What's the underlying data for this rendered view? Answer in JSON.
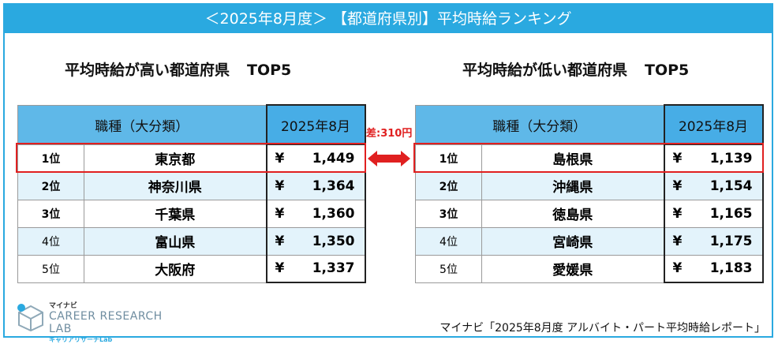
{
  "banner_title": "＜2025年8月度＞ 【都道府県別】平均時給ランキング",
  "diff_label": "差:310円",
  "logo": {
    "small": "マイナビ",
    "line1": "CAREER RESEARCH",
    "line2": "LAB",
    "sub": "キャリアリサーチLab"
  },
  "source": "マイナビ「2025年8月度 アルバイト・パート平均時給レポート」",
  "colors": {
    "accent": "#2aa9e0",
    "header": "#5fb8e8",
    "highlight": "#e02020",
    "stripe": "#e3f3fb"
  },
  "chart_data": [
    {
      "type": "table",
      "title": "平均時給が高い都道府県",
      "title_suffix": "TOP5",
      "header_col": "職種（大分類）",
      "period": "2025年8月",
      "currency": "¥",
      "rows": [
        {
          "rank": "1位",
          "prefecture": "東京都",
          "value": 1449,
          "display": "1,449"
        },
        {
          "rank": "2位",
          "prefecture": "神奈川県",
          "value": 1364,
          "display": "1,364"
        },
        {
          "rank": "3位",
          "prefecture": "千葉県",
          "value": 1360,
          "display": "1,360"
        },
        {
          "rank": "4位",
          "prefecture": "富山県",
          "value": 1350,
          "display": "1,350"
        },
        {
          "rank": "5位",
          "prefecture": "大阪府",
          "value": 1337,
          "display": "1,337"
        }
      ]
    },
    {
      "type": "table",
      "title": "平均時給が低い都道府県",
      "title_suffix": "TOP5",
      "header_col": "職種（大分類）",
      "period": "2025年8月",
      "currency": "¥",
      "rows": [
        {
          "rank": "1位",
          "prefecture": "島根県",
          "value": 1139,
          "display": "1,139"
        },
        {
          "rank": "2位",
          "prefecture": "沖縄県",
          "value": 1154,
          "display": "1,154"
        },
        {
          "rank": "3位",
          "prefecture": "徳島県",
          "value": 1165,
          "display": "1,165"
        },
        {
          "rank": "4位",
          "prefecture": "宮崎県",
          "value": 1175,
          "display": "1,175"
        },
        {
          "rank": "5位",
          "prefecture": "愛媛県",
          "value": 1183,
          "display": "1,183"
        }
      ]
    }
  ]
}
